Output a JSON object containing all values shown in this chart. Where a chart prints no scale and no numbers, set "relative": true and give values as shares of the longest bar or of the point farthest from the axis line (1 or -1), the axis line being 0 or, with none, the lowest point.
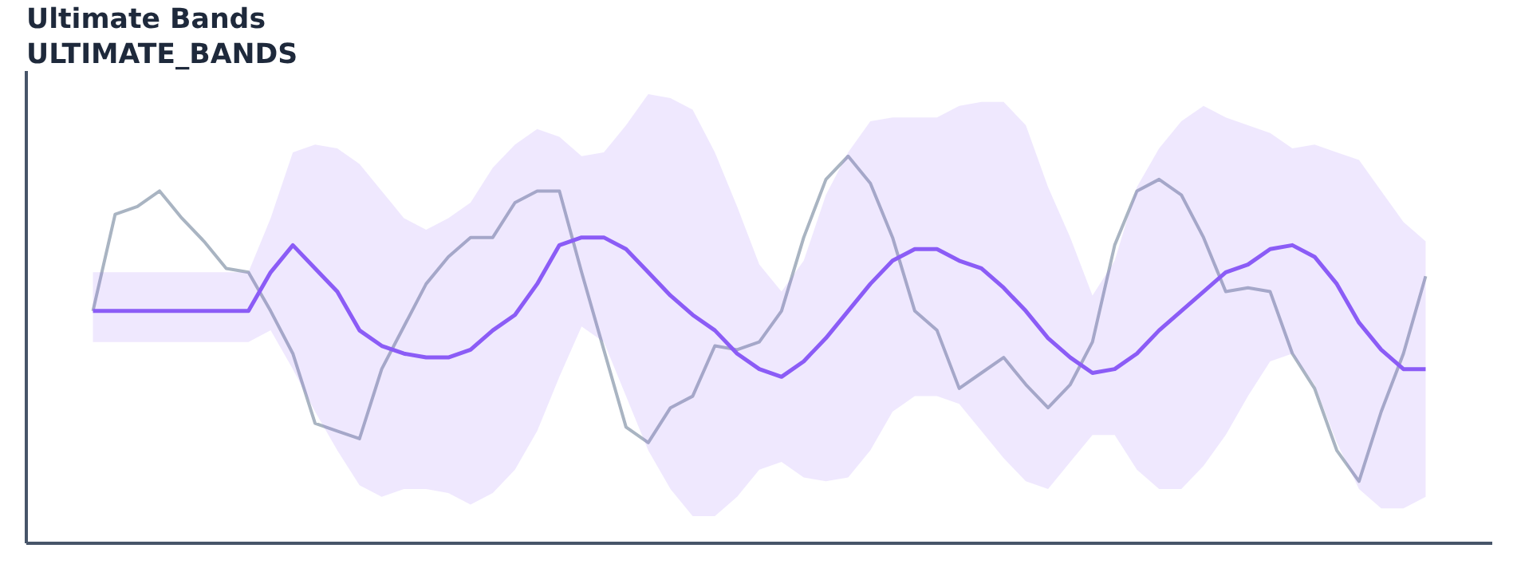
{
  "chart_data": {
    "type": "line",
    "title": "Ultimate Bands",
    "subtitle": "ULTIMATE_BANDS",
    "relative": true,
    "categories": [
      null,
      null,
      null,
      null,
      null,
      null,
      null,
      null,
      null,
      null,
      null,
      null,
      null,
      null,
      null,
      null,
      null,
      null,
      null,
      null,
      null,
      null,
      null,
      null,
      null,
      null,
      null,
      null,
      null,
      null,
      null,
      null,
      null,
      null,
      null,
      null,
      null,
      null,
      null,
      null,
      null,
      null,
      null,
      null,
      null,
      null,
      null,
      null,
      null,
      null,
      null,
      null,
      null,
      null,
      null,
      null,
      null,
      null,
      null,
      null,
      null
    ],
    "series": [
      {
        "color": "#a9b4c2",
        "values": [
          0.6,
          0.85,
          0.87,
          0.91,
          0.84,
          0.78,
          0.71,
          0.7,
          0.6,
          0.49,
          0.31,
          0.29,
          0.27,
          0.45,
          0.56,
          0.67,
          0.74,
          0.79,
          0.79,
          0.88,
          0.91,
          0.91,
          0.7,
          0.5,
          0.3,
          0.26,
          0.35,
          0.38,
          0.51,
          0.5,
          0.52,
          0.6,
          0.79,
          0.94,
          1.0,
          0.93,
          0.79,
          0.6,
          0.55,
          0.4,
          0.44,
          0.48,
          0.41,
          0.35,
          0.41,
          0.52,
          0.77,
          0.91,
          0.94,
          0.9,
          0.79,
          0.65,
          0.66,
          0.65,
          0.49,
          0.4,
          0.24,
          0.16,
          0.34,
          0.49,
          0.69
        ]
      },
      {
        "color": "#8b5cf6",
        "values": [
          0.6,
          0.6,
          0.6,
          0.6,
          0.6,
          0.6,
          0.6,
          0.6,
          0.7,
          0.77,
          0.71,
          0.65,
          0.55,
          0.51,
          0.49,
          0.48,
          0.48,
          0.5,
          0.55,
          0.59,
          0.67,
          0.77,
          0.79,
          0.79,
          0.76,
          0.7,
          0.64,
          0.59,
          0.55,
          0.49,
          0.45,
          0.43,
          0.47,
          0.53,
          0.6,
          0.67,
          0.73,
          0.76,
          0.76,
          0.73,
          0.71,
          0.66,
          0.6,
          0.53,
          0.48,
          0.44,
          0.45,
          0.49,
          0.55,
          0.6,
          0.65,
          0.7,
          0.72,
          0.76,
          0.77,
          0.74,
          0.67,
          0.57,
          0.5,
          0.45,
          0.45
        ],
        "upper": [
          0.7,
          0.7,
          0.7,
          0.7,
          0.7,
          0.7,
          0.7,
          0.7,
          0.84,
          1.01,
          1.03,
          1.02,
          0.98,
          0.91,
          0.84,
          0.81,
          0.84,
          0.88,
          0.97,
          1.03,
          1.07,
          1.05,
          1.0,
          1.01,
          1.08,
          1.16,
          1.15,
          1.12,
          1.01,
          0.87,
          0.72,
          0.65,
          0.73,
          0.9,
          1.01,
          1.09,
          1.1,
          1.1,
          1.1,
          1.13,
          1.14,
          1.14,
          1.08,
          0.92,
          0.79,
          0.64,
          0.73,
          0.92,
          1.02,
          1.09,
          1.13,
          1.1,
          1.08,
          1.06,
          1.02,
          1.03,
          1.01,
          0.99,
          0.91,
          0.83,
          0.78
        ],
        "lower": [
          0.52,
          0.52,
          0.52,
          0.52,
          0.52,
          0.52,
          0.52,
          0.52,
          0.55,
          0.45,
          0.34,
          0.24,
          0.15,
          0.12,
          0.14,
          0.14,
          0.13,
          0.1,
          0.13,
          0.19,
          0.29,
          0.43,
          0.56,
          0.52,
          0.38,
          0.24,
          0.14,
          0.07,
          0.07,
          0.12,
          0.19,
          0.21,
          0.17,
          0.16,
          0.17,
          0.24,
          0.34,
          0.38,
          0.38,
          0.36,
          0.29,
          0.22,
          0.16,
          0.14,
          0.21,
          0.28,
          0.28,
          0.19,
          0.14,
          0.14,
          0.2,
          0.28,
          0.38,
          0.47,
          0.49,
          0.41,
          0.26,
          0.14,
          0.09,
          0.09,
          0.12
        ]
      }
    ]
  }
}
